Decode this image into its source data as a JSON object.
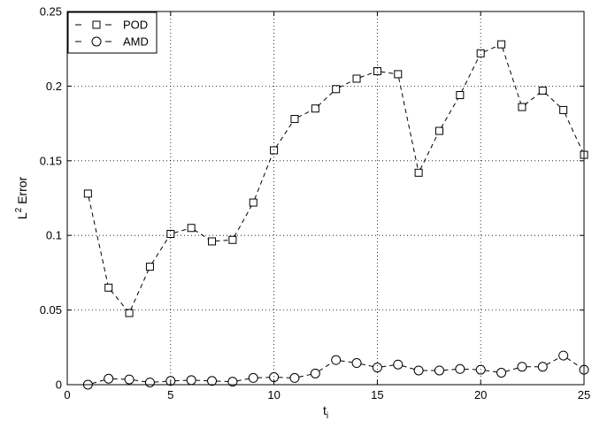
{
  "chart_data": {
    "type": "line",
    "title": "",
    "xlabel": "t",
    "xlabel_subscript": "i",
    "ylabel": "L",
    "ylabel_superscript": "2",
    "ylabel_suffix": " Error",
    "xlim": [
      0,
      25
    ],
    "ylim": [
      0,
      0.25
    ],
    "xticks": [
      0,
      5,
      10,
      15,
      20,
      25
    ],
    "xtick_labels": [
      "0",
      "5",
      "10",
      "15",
      "20",
      "25"
    ],
    "yticks": [
      0,
      0.05,
      0.1,
      0.15,
      0.2,
      0.25
    ],
    "ytick_labels": [
      "0",
      "0.05",
      "0.1",
      "0.15",
      "0.2",
      "0.25"
    ],
    "grid": true,
    "legend_position": "top-left",
    "x": [
      1,
      2,
      3,
      4,
      5,
      6,
      7,
      8,
      9,
      10,
      11,
      12,
      13,
      14,
      15,
      16,
      17,
      18,
      19,
      20,
      21,
      22,
      23,
      24,
      25
    ],
    "series": [
      {
        "name": "POD",
        "marker": "square",
        "line_style": "dashed",
        "color": "#000000",
        "values": [
          0.128,
          0.065,
          0.048,
          0.079,
          0.101,
          0.105,
          0.096,
          0.097,
          0.122,
          0.157,
          0.178,
          0.185,
          0.198,
          0.205,
          0.21,
          0.208,
          0.142,
          0.17,
          0.194,
          0.222,
          0.228,
          0.186,
          0.197,
          0.184,
          0.154
        ]
      },
      {
        "name": "AMD",
        "marker": "circle",
        "line_style": "dashed",
        "color": "#000000",
        "values": [
          0.0,
          0.004,
          0.0035,
          0.0015,
          0.0025,
          0.003,
          0.0025,
          0.002,
          0.0045,
          0.005,
          0.0045,
          0.0075,
          0.0165,
          0.0145,
          0.0115,
          0.0135,
          0.0095,
          0.0095,
          0.0105,
          0.01,
          0.008,
          0.012,
          0.012,
          0.0195,
          0.01
        ]
      }
    ]
  }
}
